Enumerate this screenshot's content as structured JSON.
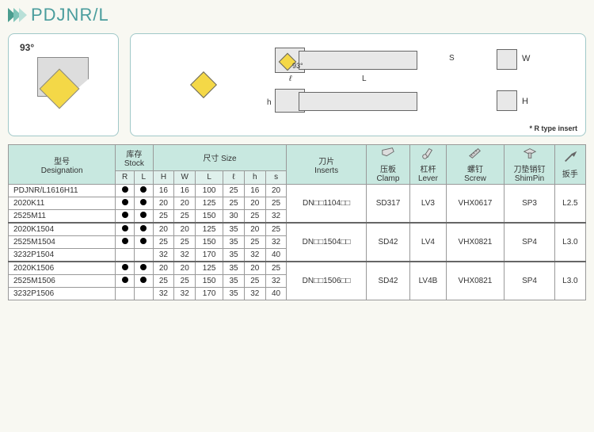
{
  "title": "PDJNR/L",
  "angle": "93°",
  "insert_note": "* R type insert",
  "dims": {
    "S": "S",
    "W": "W",
    "L": "L",
    "h": "h",
    "H": "H",
    "ell": "ℓ",
    "a93": "93°"
  },
  "headers": {
    "designation_cn": "型号",
    "designation_en": "Designation",
    "stock_cn": "库存",
    "stock_en": "Stock",
    "size_cn": "尺寸",
    "size_en": "Size",
    "inserts_cn": "刀片",
    "inserts_en": "Inserts",
    "clamp_cn": "压板",
    "clamp_en": "Clamp",
    "lever_cn": "杠杆",
    "lever_en": "Lever",
    "screw_cn": "螺钉",
    "screw_en": "Screw",
    "shimpin_cn": "刀垫销钉",
    "shimpin_en": "ShimPin",
    "wrench_cn": "扳手",
    "wrench_en": "",
    "R": "R",
    "L": "L",
    "H": "H",
    "W": "W",
    "Ll": "L",
    "ell": "ℓ",
    "h": "h",
    "s": "s"
  },
  "rows": [
    {
      "des": "PDJNR/L1616H11",
      "r": true,
      "l": true,
      "H": "16",
      "W": "16",
      "L": "100",
      "ell": "25",
      "h": "16",
      "s": "20",
      "ins": "",
      "clamp": "",
      "lever": "",
      "screw": "",
      "shim": "",
      "wr": ""
    },
    {
      "des": "2020K11",
      "r": true,
      "l": true,
      "H": "20",
      "W": "20",
      "L": "125",
      "ell": "25",
      "h": "20",
      "s": "25",
      "ins": "DN□□1104□□",
      "clamp": "SD317",
      "lever": "LV3",
      "screw": "VHX0617",
      "shim": "SP3",
      "wr": "L2.5"
    },
    {
      "des": "2525M11",
      "r": true,
      "l": true,
      "H": "25",
      "W": "25",
      "L": "150",
      "ell": "30",
      "h": "25",
      "s": "32",
      "ins": "",
      "clamp": "",
      "lever": "",
      "screw": "",
      "shim": "",
      "wr": ""
    },
    {
      "des": "2020K1504",
      "r": true,
      "l": true,
      "H": "20",
      "W": "20",
      "L": "125",
      "ell": "35",
      "h": "20",
      "s": "25",
      "ins": "",
      "clamp": "",
      "lever": "",
      "screw": "",
      "shim": "",
      "wr": "",
      "sep": true
    },
    {
      "des": "2525M1504",
      "r": true,
      "l": true,
      "H": "25",
      "W": "25",
      "L": "150",
      "ell": "35",
      "h": "25",
      "s": "32",
      "ins": "DN□□1504□□",
      "clamp": "SD42",
      "lever": "LV4",
      "screw": "VHX0821",
      "shim": "SP4",
      "wr": "L3.0"
    },
    {
      "des": "3232P1504",
      "r": false,
      "l": false,
      "H": "32",
      "W": "32",
      "L": "170",
      "ell": "35",
      "h": "32",
      "s": "40",
      "ins": "",
      "clamp": "",
      "lever": "",
      "screw": "",
      "shim": "",
      "wr": ""
    },
    {
      "des": "2020K1506",
      "r": true,
      "l": true,
      "H": "20",
      "W": "20",
      "L": "125",
      "ell": "35",
      "h": "20",
      "s": "25",
      "ins": "",
      "clamp": "",
      "lever": "",
      "screw": "",
      "shim": "",
      "wr": "",
      "sep": true
    },
    {
      "des": "2525M1506",
      "r": true,
      "l": true,
      "H": "25",
      "W": "25",
      "L": "150",
      "ell": "35",
      "h": "25",
      "s": "32",
      "ins": "DN□□1506□□",
      "clamp": "SD42",
      "lever": "LV4B",
      "screw": "VHX0821",
      "shim": "SP4",
      "wr": "L3.0"
    },
    {
      "des": "3232P1506",
      "r": false,
      "l": false,
      "H": "32",
      "W": "32",
      "L": "170",
      "ell": "35",
      "h": "32",
      "s": "40",
      "ins": "",
      "clamp": "",
      "lever": "",
      "screw": "",
      "shim": "",
      "wr": ""
    }
  ],
  "groups": [
    {
      "start": 0,
      "span": 3
    },
    {
      "start": 3,
      "span": 3
    },
    {
      "start": 6,
      "span": 3
    }
  ]
}
